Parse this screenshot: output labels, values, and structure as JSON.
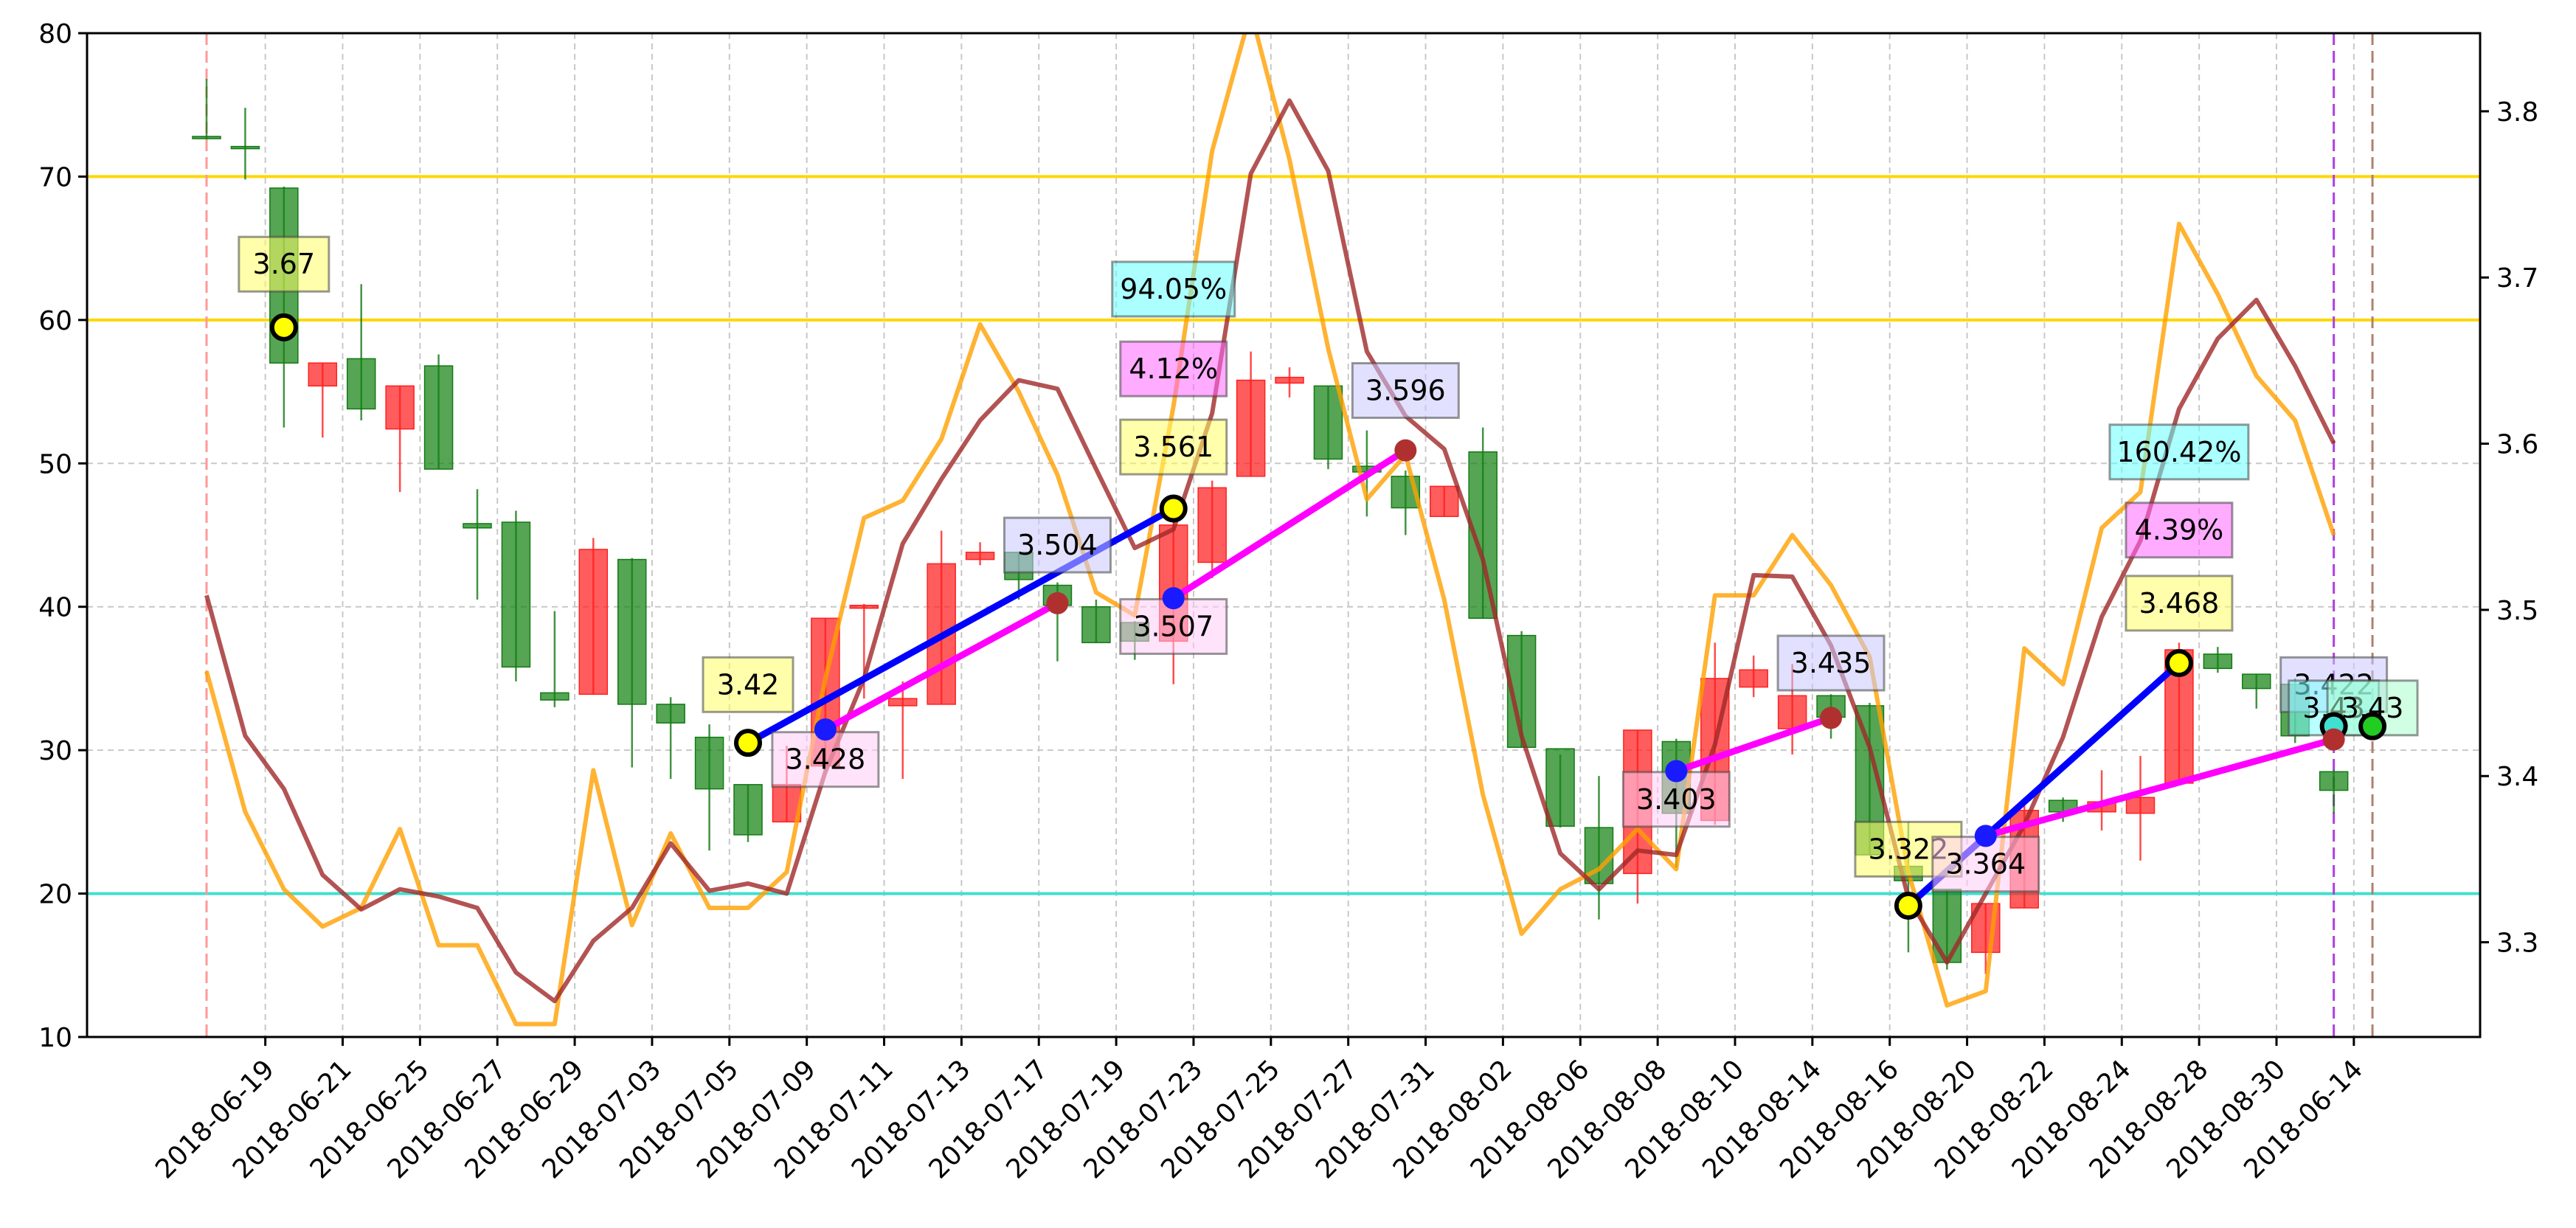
{
  "chart_data": {
    "type": "candlestick",
    "x_tick_labels": [
      "2018-06-14",
      "2018-06-19",
      "2018-06-21",
      "2018-06-25",
      "2018-06-27",
      "2018-06-29",
      "2018-07-03",
      "2018-07-05",
      "2018-07-09",
      "2018-07-11",
      "2018-07-13",
      "2018-07-17",
      "2018-07-19",
      "2018-07-23",
      "2018-07-25",
      "2018-07-27",
      "2018-07-31",
      "2018-08-02",
      "2018-08-06",
      "2018-08-08",
      "2018-08-10",
      "2018-08-14",
      "2018-08-16",
      "2018-08-20",
      "2018-08-22",
      "2018-08-24",
      "2018-08-28",
      "2018-08-30"
    ],
    "left_axis": {
      "range": [
        10,
        80
      ],
      "ticks": [
        10,
        20,
        30,
        40,
        50,
        60,
        70,
        80
      ]
    },
    "right_axis": {
      "range": [
        3.243,
        3.847
      ],
      "ticks": [
        3.3,
        3.4,
        3.5,
        3.6,
        3.7,
        3.8
      ]
    },
    "grid": true,
    "candles": [
      {
        "d": "2018-06-15",
        "o": 72.8,
        "h": 76.8,
        "l": 72.6,
        "c": 72.8
      },
      {
        "d": "2018-06-18",
        "o": 72.1,
        "h": 74.8,
        "l": 69.8,
        "c": 72.1
      },
      {
        "d": "2018-06-19",
        "o": 57.0,
        "h": 69.3,
        "l": 52.5,
        "c": 69.2
      },
      {
        "d": "2018-06-20",
        "o": 57.0,
        "h": 57.0,
        "l": 51.8,
        "c": 55.4
      },
      {
        "d": "2018-06-21",
        "o": 53.8,
        "h": 62.5,
        "l": 53.0,
        "c": 57.3
      },
      {
        "d": "2018-06-22",
        "o": 55.4,
        "h": 55.4,
        "l": 48.0,
        "c": 52.4
      },
      {
        "d": "2018-06-25",
        "o": 49.6,
        "h": 57.6,
        "l": 49.6,
        "c": 56.8
      },
      {
        "d": "2018-06-26",
        "o": 45.5,
        "h": 48.2,
        "l": 40.5,
        "c": 45.8
      },
      {
        "d": "2018-06-27",
        "o": 35.8,
        "h": 46.7,
        "l": 34.8,
        "c": 45.9
      },
      {
        "d": "2018-06-28",
        "o": 33.5,
        "h": 39.7,
        "l": 33.0,
        "c": 34.0
      },
      {
        "d": "2018-06-29",
        "o": 44.0,
        "h": 44.8,
        "l": 33.9,
        "c": 33.9
      },
      {
        "d": "2018-07-02",
        "o": 33.2,
        "h": 43.4,
        "l": 28.8,
        "c": 43.3
      },
      {
        "d": "2018-07-03",
        "o": 31.9,
        "h": 33.7,
        "l": 28.0,
        "c": 33.2
      },
      {
        "d": "2018-07-04",
        "o": 27.3,
        "h": 31.8,
        "l": 23.0,
        "c": 30.9
      },
      {
        "d": "2018-07-05",
        "o": 24.1,
        "h": 27.6,
        "l": 23.6,
        "c": 27.6
      },
      {
        "d": "2018-07-06",
        "o": 27.6,
        "h": 30.3,
        "l": 25.0,
        "c": 25.0
      },
      {
        "d": "2018-07-09",
        "o": 39.2,
        "h": 39.2,
        "l": 28.9,
        "c": 28.9
      },
      {
        "d": "2018-07-10",
        "o": 40.1,
        "h": 40.2,
        "l": 33.6,
        "c": 39.9
      },
      {
        "d": "2018-07-11",
        "o": 33.6,
        "h": 34.8,
        "l": 28.0,
        "c": 33.1
      },
      {
        "d": "2018-07-12",
        "o": 43.0,
        "h": 45.3,
        "l": 33.2,
        "c": 33.2
      },
      {
        "d": "2018-07-13",
        "o": 43.8,
        "h": 44.5,
        "l": 42.9,
        "c": 43.3
      },
      {
        "d": "2018-07-16",
        "o": 41.9,
        "h": 43.8,
        "l": 40.5,
        "c": 43.8
      },
      {
        "d": "2018-07-17",
        "o": 40.1,
        "h": 41.7,
        "l": 36.2,
        "c": 41.5
      },
      {
        "d": "2018-07-18",
        "o": 37.5,
        "h": 40.5,
        "l": 37.5,
        "c": 40.0
      },
      {
        "d": "2018-07-19",
        "o": 37.6,
        "h": 39.0,
        "l": 36.3,
        "c": 38.9
      },
      {
        "d": "2018-07-20",
        "o": 45.7,
        "h": 46.5,
        "l": 34.6,
        "c": 37.6
      },
      {
        "d": "2018-07-23",
        "o": 48.3,
        "h": 48.8,
        "l": 42.0,
        "c": 43.1
      },
      {
        "d": "2018-07-24",
        "o": 55.8,
        "h": 57.8,
        "l": 49.1,
        "c": 49.1
      },
      {
        "d": "2018-07-25",
        "o": 56.0,
        "h": 56.7,
        "l": 54.6,
        "c": 55.6
      },
      {
        "d": "2018-07-26",
        "o": 50.3,
        "h": 55.4,
        "l": 49.6,
        "c": 55.4
      },
      {
        "d": "2018-07-27",
        "o": 49.4,
        "h": 52.3,
        "l": 46.3,
        "c": 49.8
      },
      {
        "d": "2018-07-30",
        "o": 46.9,
        "h": 49.5,
        "l": 45.0,
        "c": 49.1
      },
      {
        "d": "2018-07-31",
        "o": 48.4,
        "h": 48.4,
        "l": 46.3,
        "c": 46.3
      },
      {
        "d": "2018-08-01",
        "o": 39.2,
        "h": 52.5,
        "l": 39.2,
        "c": 50.8
      },
      {
        "d": "2018-08-02",
        "o": 30.2,
        "h": 38.3,
        "l": 30.2,
        "c": 38.0
      },
      {
        "d": "2018-08-03",
        "o": 24.7,
        "h": 29.7,
        "l": 24.6,
        "c": 30.1
      },
      {
        "d": "2018-08-06",
        "o": 20.7,
        "h": 28.2,
        "l": 18.2,
        "c": 24.6
      },
      {
        "d": "2018-08-07",
        "o": 31.4,
        "h": 31.4,
        "l": 19.3,
        "c": 21.4
      },
      {
        "d": "2018-08-08",
        "o": 25.6,
        "h": 30.8,
        "l": 21.8,
        "c": 30.6
      },
      {
        "d": "2018-08-09",
        "o": 35.0,
        "h": 37.5,
        "l": 24.8,
        "c": 25.1
      },
      {
        "d": "2018-08-10",
        "o": 35.6,
        "h": 36.6,
        "l": 33.7,
        "c": 34.4
      },
      {
        "d": "2018-08-13",
        "o": 33.8,
        "h": 36.0,
        "l": 29.7,
        "c": 31.5
      },
      {
        "d": "2018-08-14",
        "o": 32.3,
        "h": 33.9,
        "l": 30.8,
        "c": 33.8
      },
      {
        "d": "2018-08-15",
        "o": 22.7,
        "h": 33.3,
        "l": 22.7,
        "c": 33.1
      },
      {
        "d": "2018-08-16",
        "o": 20.9,
        "h": 25.0,
        "l": 15.9,
        "c": 21.9
      },
      {
        "d": "2018-08-17",
        "o": 15.2,
        "h": 20.3,
        "l": 14.7,
        "c": 20.3
      },
      {
        "d": "2018-08-20",
        "o": 19.3,
        "h": 19.3,
        "l": 14.4,
        "c": 15.9
      },
      {
        "d": "2018-08-21",
        "o": 25.8,
        "h": 26.5,
        "l": 19.0,
        "c": 19.0
      },
      {
        "d": "2018-08-22",
        "o": 25.7,
        "h": 26.7,
        "l": 25.0,
        "c": 26.5
      },
      {
        "d": "2018-08-23",
        "o": 26.4,
        "h": 28.6,
        "l": 24.4,
        "c": 25.7
      },
      {
        "d": "2018-08-24",
        "o": 26.7,
        "h": 29.6,
        "l": 22.3,
        "c": 25.6
      },
      {
        "d": "2018-08-27",
        "o": 37.0,
        "h": 37.5,
        "l": 27.6,
        "c": 27.7
      },
      {
        "d": "2018-08-28",
        "o": 35.7,
        "h": 37.2,
        "l": 35.4,
        "c": 36.7
      },
      {
        "d": "2018-08-29",
        "o": 34.3,
        "h": 35.3,
        "l": 32.9,
        "c": 35.3
      },
      {
        "d": "2018-08-30",
        "o": 31.0,
        "h": 35.0,
        "l": 30.5,
        "c": 34.6
      },
      {
        "d": "2018-08-31",
        "o": 27.2,
        "h": 28.6,
        "l": 25.6,
        "c": 28.5
      }
    ],
    "orange_line": [
      35.5,
      25.7,
      20.3,
      17.7,
      19.0,
      24.5,
      16.4,
      16.4,
      10.9,
      10.9,
      28.6,
      17.8,
      24.2,
      19.0,
      19.0,
      21.5,
      35.0,
      46.2,
      47.4,
      51.7,
      59.7,
      55.0,
      49.2,
      41.0,
      39.4,
      54.0,
      71.8,
      81.5,
      71.2,
      58.0,
      47.5,
      50.6,
      40.5,
      26.9,
      17.2,
      20.3,
      21.7,
      24.5,
      21.7,
      40.8,
      40.8,
      45.0,
      41.5,
      36.5,
      21.5,
      12.2,
      13.2,
      37.1,
      34.6,
      45.5,
      48.0,
      66.7,
      61.8,
      56.1,
      53.0,
      45.0
    ],
    "brown_line": [
      40.8,
      31.0,
      27.3,
      21.3,
      18.9,
      20.3,
      19.8,
      19.0,
      14.5,
      12.5,
      16.7,
      19.0,
      23.5,
      20.2,
      20.7,
      20.0,
      28.5,
      35.0,
      44.4,
      48.9,
      53.0,
      55.8,
      55.2,
      49.6,
      44.1,
      45.4,
      53.5,
      70.2,
      75.3,
      70.4,
      57.8,
      53.3,
      51.0,
      43.3,
      31.0,
      22.8,
      20.3,
      23.0,
      22.7,
      30.4,
      42.2,
      42.1,
      37.3,
      30.2,
      19.7,
      15.2,
      20.0,
      24.8,
      30.9,
      39.3,
      44.6,
      53.8,
      58.7,
      61.4,
      56.8,
      51.4
    ],
    "h_lines": [
      {
        "value": 70,
        "color": "#ffd700"
      },
      {
        "value": 60,
        "color": "#ffd700"
      },
      {
        "value": 20,
        "color": "#40e0d0"
      }
    ],
    "v_lines": [
      {
        "date": "2018-06-15",
        "color": "#ff9999"
      },
      {
        "date": "2018-08-31",
        "color": "#b040e0"
      },
      {
        "date": "2018-09-03",
        "color": "#b08070"
      }
    ],
    "blue_segments": [
      {
        "from": "2018-07-05",
        "to": "2018-07-20"
      },
      {
        "from": "2018-08-16",
        "to": "2018-08-27"
      }
    ],
    "magenta_segments": [
      {
        "from": "2018-07-09",
        "to": "2018-07-17"
      },
      {
        "from": "2018-07-20",
        "to": "2018-07-30"
      },
      {
        "from": "2018-08-08",
        "to": "2018-08-14"
      },
      {
        "from": "2018-08-20",
        "to": "2018-08-31"
      }
    ],
    "points": [
      {
        "d": "2018-06-19",
        "price": 3.67,
        "fill": "#ffff00"
      },
      {
        "d": "2018-07-05",
        "price": 3.42,
        "fill": "#ffff00"
      },
      {
        "d": "2018-07-20",
        "price": 3.561,
        "fill": "#ffff00"
      },
      {
        "d": "2018-08-16",
        "price": 3.322,
        "fill": "#ffff00"
      },
      {
        "d": "2018-08-27",
        "price": 3.468,
        "fill": "#ffff00"
      },
      {
        "d": "2018-08-31",
        "price": 3.43,
        "fill": "#40e0d0"
      },
      {
        "d": "2018-09-03",
        "price": 3.43,
        "fill": "#22cc22"
      },
      {
        "d": "2018-07-09",
        "price": 3.428,
        "fill": "#1a1aff"
      },
      {
        "d": "2018-07-20",
        "price": 3.507,
        "fill": "#1a1aff"
      },
      {
        "d": "2018-08-08",
        "price": 3.403,
        "fill": "#1a1aff"
      },
      {
        "d": "2018-08-20",
        "price": 3.364,
        "fill": "#1a1aff"
      },
      {
        "d": "2018-07-17",
        "price": 3.504,
        "fill": "#b03030"
      },
      {
        "d": "2018-07-30",
        "price": 3.596,
        "fill": "#b03030"
      },
      {
        "d": "2018-08-14",
        "price": 3.435,
        "fill": "#b03030"
      },
      {
        "d": "2018-08-31",
        "price": 3.422,
        "fill": "#b03030"
      }
    ],
    "annotations": [
      {
        "text": "3.67",
        "d": "2018-06-19",
        "price": 3.708,
        "bg": "#ffff66"
      },
      {
        "text": "3.42",
        "d": "2018-07-05",
        "price": 3.455,
        "bg": "#ffff66"
      },
      {
        "text": "3.561",
        "d": "2018-07-20",
        "price": 3.598,
        "bg": "#ffff66"
      },
      {
        "text": "3.322",
        "d": "2018-08-16",
        "price": 3.356,
        "bg": "#ffff66"
      },
      {
        "text": "3.468",
        "d": "2018-08-27",
        "price": 3.504,
        "bg": "#ffff66"
      },
      {
        "text": "3.428",
        "d": "2018-07-09",
        "price": 3.41,
        "bg": "#ffccf5"
      },
      {
        "text": "3.507",
        "d": "2018-07-20",
        "price": 3.49,
        "bg": "#ffccf5"
      },
      {
        "text": "3.403",
        "d": "2018-08-08",
        "price": 3.386,
        "bg": "#ffccf5"
      },
      {
        "text": "3.364",
        "d": "2018-08-20",
        "price": 3.347,
        "bg": "#ffccf5"
      },
      {
        "text": "3.504",
        "d": "2018-07-17",
        "price": 3.539,
        "bg": "#c8c8ff"
      },
      {
        "text": "3.596",
        "d": "2018-07-30",
        "price": 3.632,
        "bg": "#c8c8ff"
      },
      {
        "text": "3.435",
        "d": "2018-08-14",
        "price": 3.468,
        "bg": "#c8c8ff"
      },
      {
        "text": "3.422",
        "d": "2018-08-31",
        "price": 3.455,
        "bg": "#c8c8ff"
      },
      {
        "text": "3.43",
        "d": "2018-08-31",
        "price": 3.441,
        "bg": "#80ffff"
      },
      {
        "text": "3.43",
        "d": "2018-09-03",
        "price": 3.441,
        "bg": "#aaffcc"
      },
      {
        "text": "94.05%",
        "d": "2018-07-20",
        "price": 3.693,
        "bg": "#66ffff"
      },
      {
        "text": "4.12%",
        "d": "2018-07-20",
        "price": 3.645,
        "bg": "#ff66ff"
      },
      {
        "text": "160.42%",
        "d": "2018-08-27",
        "price": 3.595,
        "bg": "#66ffff"
      },
      {
        "text": "4.39%",
        "d": "2018-08-27",
        "price": 3.548,
        "bg": "#ff66ff"
      }
    ]
  }
}
